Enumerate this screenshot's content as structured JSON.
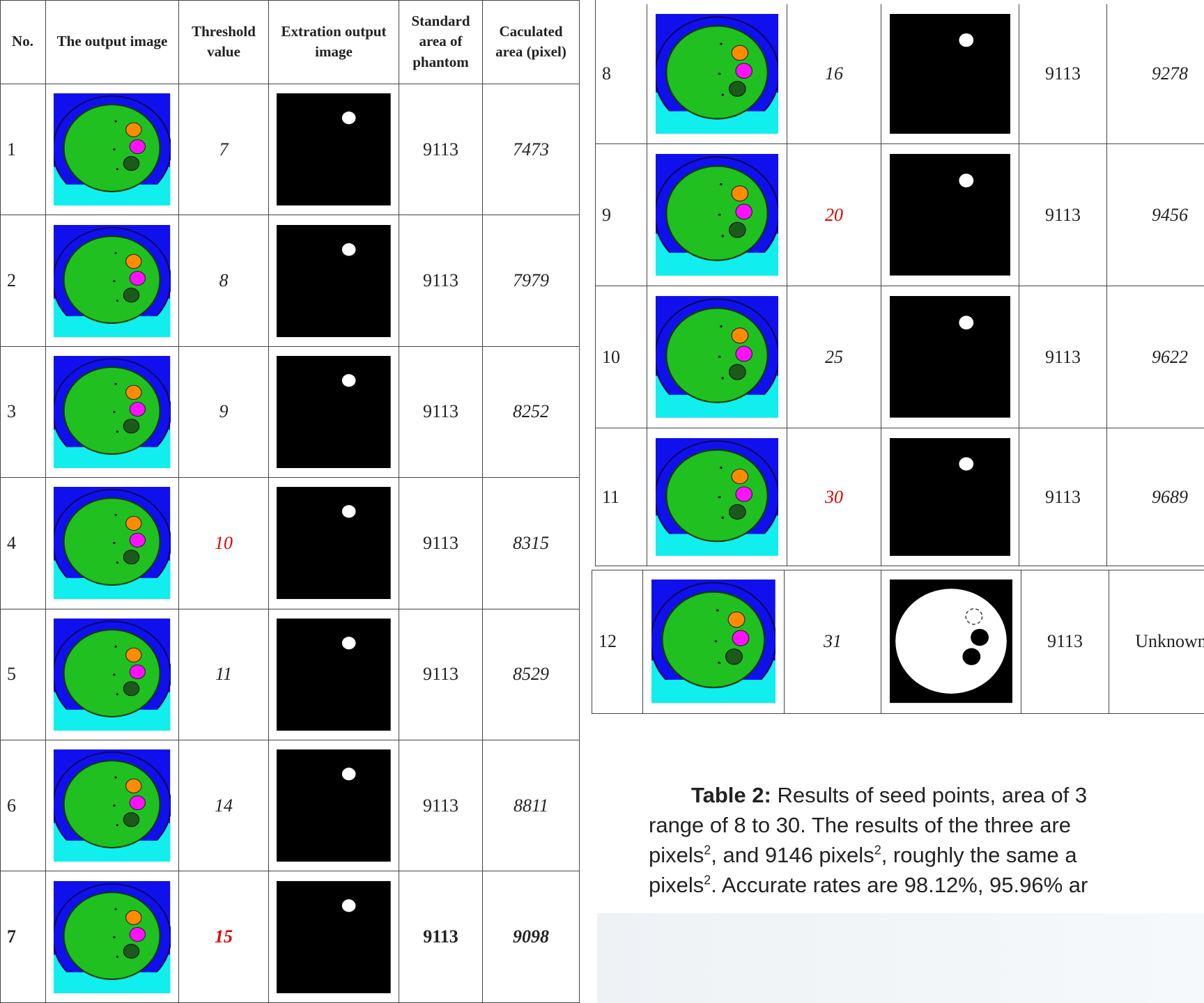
{
  "left_table": {
    "headers": [
      "No.",
      "The output image",
      "Threshold value",
      "Extration output image",
      "Standard area of phantom",
      "Caculated area (pixel)"
    ],
    "rows": [
      {
        "no": 1,
        "threshold": 7,
        "standard": 9113,
        "calculated": 7473
      },
      {
        "no": 2,
        "threshold": 8,
        "standard": 9113,
        "calculated": 7979
      },
      {
        "no": 3,
        "threshold": 9,
        "standard": 9113,
        "calculated": 8252
      },
      {
        "no": 4,
        "threshold": 10,
        "threshold_color": "#e00000",
        "standard": 9113,
        "calculated": 8315
      },
      {
        "no": 5,
        "threshold": 11,
        "standard": 9113,
        "calculated": 8529
      },
      {
        "no": 6,
        "threshold": 14,
        "standard": 9113,
        "calculated": 8811
      },
      {
        "no": 7,
        "threshold": 15,
        "threshold_color": "#e00000",
        "bold": true,
        "standard": 9113,
        "calculated": 9098
      }
    ]
  },
  "right_table": {
    "rows": [
      {
        "no": 8,
        "threshold": 16,
        "standard": 9113,
        "calculated": 9278
      },
      {
        "no": 9,
        "threshold": 20,
        "threshold_color": "#e00000",
        "standard": 9113,
        "calculated": 9456
      },
      {
        "no": 10,
        "threshold": 25,
        "standard": 9113,
        "calculated": 9622
      },
      {
        "no": 11,
        "threshold": 30,
        "threshold_color": "#e00000",
        "standard": 9113,
        "calculated": 9689
      },
      {
        "no": 12,
        "threshold": 31,
        "standard": 9113,
        "calculated": "Unknown"
      }
    ]
  },
  "caption": {
    "label": "Table 2:",
    "lines": [
      [
        "Results of seed points, area of 3"
      ],
      [
        "range of 8 to 30. The results of the three are"
      ],
      [
        "pixels",
        "2",
        ", and 9146 pixels",
        "2",
        ", roughly the same a"
      ],
      [
        "pixels",
        "2",
        ". Accurate rates are 98.12%,  95.96% ar"
      ]
    ]
  }
}
